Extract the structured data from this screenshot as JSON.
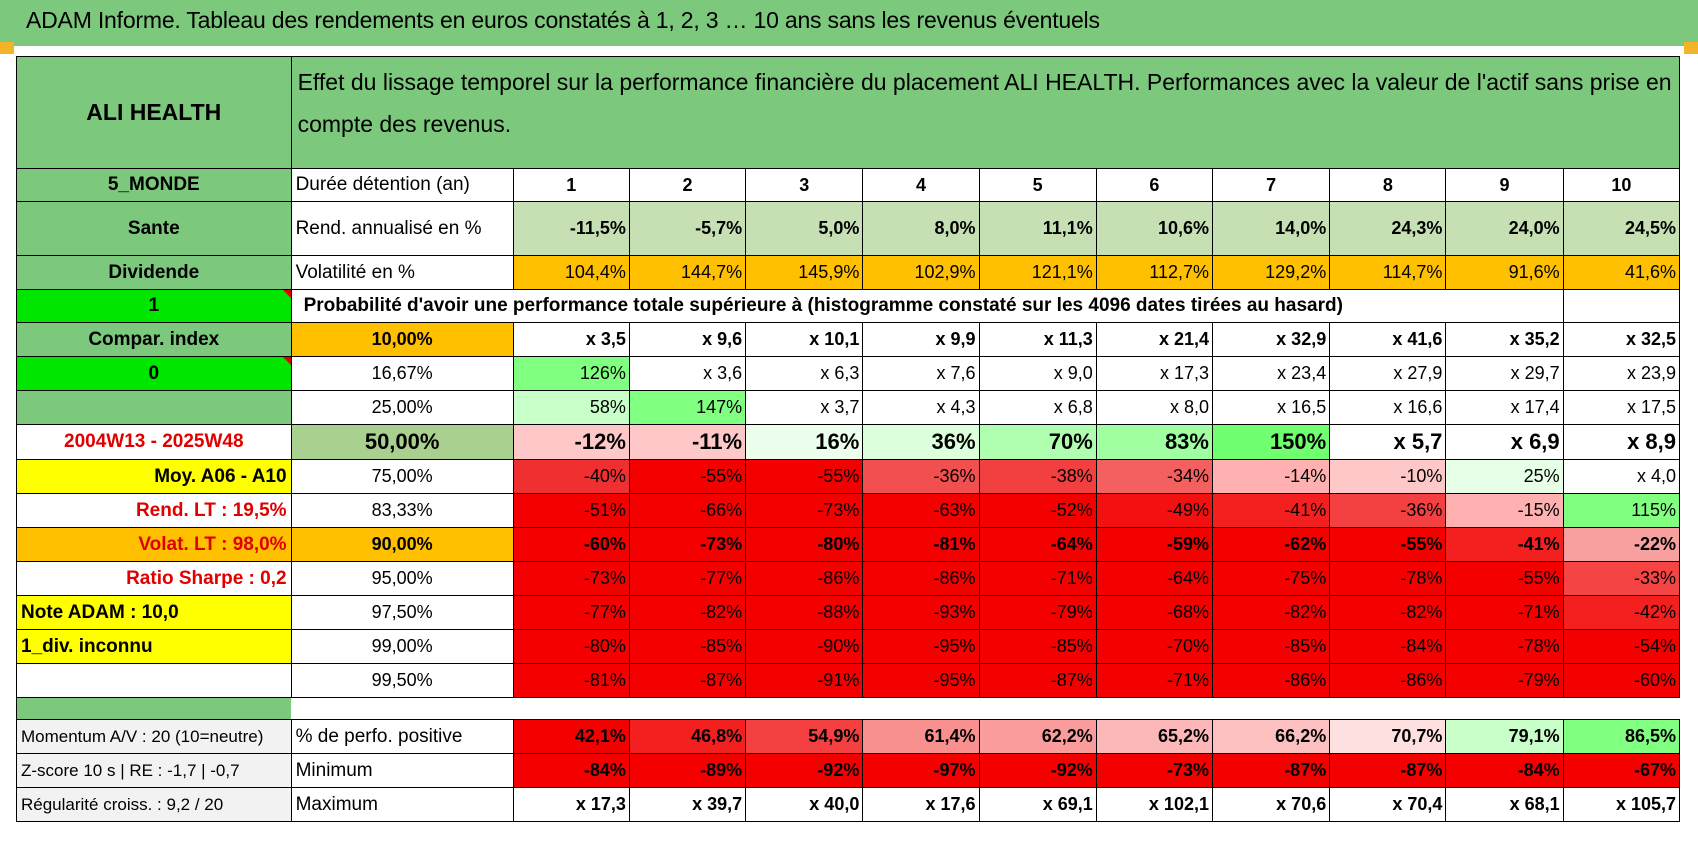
{
  "header": {
    "title": "ADAM Informe. Tableau des rendements en euros constatés à 1, 2, 3 … 10 ans sans les revenus éventuels"
  },
  "colors": {
    "green_header": "#7cc87c",
    "bright_green": "#00e600",
    "yellow": "#ffff00",
    "orange": "#ffc000",
    "red_text": "#e00000"
  },
  "sidebar": {
    "asset_name": "ALI HEALTH",
    "region": "5_MONDE",
    "sector": "Sante",
    "type": "Dividende",
    "flag_1": "1",
    "compar_index": "Compar. index",
    "flag_2": "0",
    "empty": "",
    "period": "2004W13 - 2025W48",
    "avg": "Moy. A06 - A10",
    "rend_lt": "Rend. LT :    19,5%",
    "volat_lt": "Volat. LT :    98,0%",
    "sharpe": "Ratio Sharpe :     0,2",
    "note": "Note ADAM : 10,0",
    "div": "1_div. inconnu",
    "momentum": "Momentum A/V : 20 (10=neutre)",
    "zscore": "Z-score 10 s | RE : -1,7 | -0,7",
    "regularity": "Régularité croiss. : 9,2 / 20"
  },
  "main": {
    "description": "Effet du lissage temporel sur la performance financière du placement ALI HEALTH. Performances avec la valeur de l'actif sans prise en compte des revenus.",
    "duration_label": "Durée détention (an)",
    "years": [
      "1",
      "2",
      "3",
      "4",
      "5",
      "6",
      "7",
      "8",
      "9",
      "10"
    ],
    "rend_label": "Rend. annualisé en %",
    "rend": [
      "-11,5%",
      "-5,7%",
      "5,0%",
      "8,0%",
      "11,1%",
      "10,6%",
      "14,0%",
      "24,3%",
      "24,0%",
      "24,5%"
    ],
    "vol_label": "Volatilité en %",
    "vol": [
      "104,4%",
      "144,7%",
      "145,9%",
      "102,9%",
      "121,1%",
      "112,7%",
      "129,2%",
      "114,7%",
      "91,6%",
      "41,6%"
    ],
    "prob_label": "Probabilité d'avoir une performance totale supérieure à (histogramme constaté sur les 4096 dates tirées au hasard)"
  },
  "quantiles": [
    {
      "label": "10,00%",
      "values": [
        "x 3,5",
        "x 9,6",
        "x 10,1",
        "x 9,9",
        "x 11,3",
        "x 21,4",
        "x 32,9",
        "x 41,6",
        "x 35,2",
        "x 32,5"
      ]
    },
    {
      "label": "16,67%",
      "values": [
        "126%",
        "x 3,6",
        "x 6,3",
        "x 7,6",
        "x 9,0",
        "x 17,3",
        "x 23,4",
        "x 27,9",
        "x 29,7",
        "x 23,9"
      ]
    },
    {
      "label": "25,00%",
      "values": [
        "58%",
        "147%",
        "x 3,7",
        "x 4,3",
        "x 6,8",
        "x 8,0",
        "x 16,5",
        "x 16,6",
        "x 17,4",
        "x 17,5"
      ]
    },
    {
      "label": "50,00%",
      "values": [
        "-12%",
        "-11%",
        "16%",
        "36%",
        "70%",
        "83%",
        "150%",
        "x 5,7",
        "x 6,9",
        "x 8,9"
      ]
    },
    {
      "label": "75,00%",
      "values": [
        "-40%",
        "-55%",
        "-55%",
        "-36%",
        "-38%",
        "-34%",
        "-14%",
        "-10%",
        "25%",
        "x 4,0"
      ]
    },
    {
      "label": "83,33%",
      "values": [
        "-51%",
        "-66%",
        "-73%",
        "-63%",
        "-52%",
        "-49%",
        "-41%",
        "-36%",
        "-15%",
        "115%"
      ]
    },
    {
      "label": "90,00%",
      "values": [
        "-60%",
        "-73%",
        "-80%",
        "-81%",
        "-64%",
        "-59%",
        "-62%",
        "-55%",
        "-41%",
        "-22%"
      ]
    },
    {
      "label": "95,00%",
      "values": [
        "-73%",
        "-77%",
        "-86%",
        "-86%",
        "-71%",
        "-64%",
        "-75%",
        "-78%",
        "-55%",
        "-33%"
      ]
    },
    {
      "label": "97,50%",
      "values": [
        "-77%",
        "-82%",
        "-88%",
        "-93%",
        "-79%",
        "-68%",
        "-82%",
        "-82%",
        "-71%",
        "-42%"
      ]
    },
    {
      "label": "99,00%",
      "values": [
        "-80%",
        "-85%",
        "-90%",
        "-95%",
        "-85%",
        "-70%",
        "-85%",
        "-84%",
        "-78%",
        "-54%"
      ]
    },
    {
      "label": "99,50%",
      "values": [
        "-81%",
        "-87%",
        "-91%",
        "-95%",
        "-87%",
        "-71%",
        "-86%",
        "-86%",
        "-79%",
        "-60%"
      ]
    }
  ],
  "summary": [
    {
      "label": "% de perfo. positive",
      "values": [
        "42,1%",
        "46,8%",
        "54,9%",
        "61,4%",
        "62,2%",
        "65,2%",
        "66,2%",
        "70,7%",
        "79,1%",
        "86,5%"
      ]
    },
    {
      "label": "Minimum",
      "values": [
        "-84%",
        "-89%",
        "-92%",
        "-97%",
        "-92%",
        "-73%",
        "-87%",
        "-87%",
        "-84%",
        "-67%"
      ]
    },
    {
      "label": "Maximum",
      "values": [
        "x 17,3",
        "x 39,7",
        "x 40,0",
        "x 17,6",
        "x 69,1",
        "x 102,1",
        "x 70,6",
        "x 70,4",
        "x 68,1",
        "x 105,7"
      ]
    }
  ]
}
